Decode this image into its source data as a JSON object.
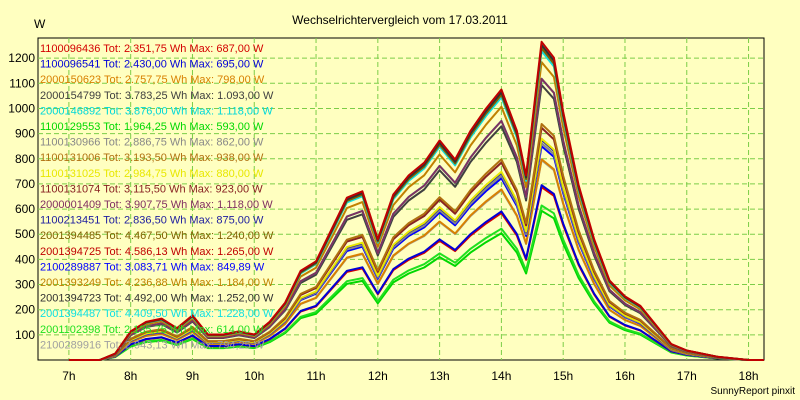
{
  "chart_data": {
    "type": "line",
    "title": "Wechselrichtervergleich vom 17.03.2011",
    "ylabel": "W",
    "xlabel": "",
    "footer": "SunnyReport pinxit",
    "xlim": [
      6.5,
      18.25
    ],
    "ylim": [
      0,
      1280
    ],
    "x_ticks": [
      7,
      8,
      9,
      10,
      11,
      12,
      13,
      14,
      15,
      16,
      17,
      18
    ],
    "x_tick_labels": [
      "7h",
      "8h",
      "9h",
      "10h",
      "11h",
      "12h",
      "13h",
      "14h",
      "15h",
      "16h",
      "17h",
      "18h"
    ],
    "y_ticks": [
      100,
      200,
      300,
      400,
      500,
      600,
      700,
      800,
      900,
      1000,
      1100,
      1200
    ],
    "grid": true,
    "legend_position": "left-inside",
    "x": [
      7.0,
      7.5,
      7.75,
      8.0,
      8.25,
      8.5,
      8.75,
      9.0,
      9.25,
      9.5,
      9.75,
      10.0,
      10.25,
      10.5,
      10.75,
      11.0,
      11.25,
      11.5,
      11.75,
      12.0,
      12.25,
      12.5,
      12.75,
      13.0,
      13.25,
      13.5,
      13.75,
      14.0,
      14.25,
      14.4,
      14.65,
      14.85,
      15.0,
      15.25,
      15.5,
      15.75,
      16.0,
      16.25,
      16.5,
      16.75,
      17.0,
      17.5,
      18.0,
      18.25
    ],
    "shape": [
      0,
      0,
      0.02,
      0.09,
      0.12,
      0.13,
      0.1,
      0.14,
      0.08,
      0.08,
      0.09,
      0.08,
      0.12,
      0.18,
      0.28,
      0.31,
      0.41,
      0.51,
      0.53,
      0.38,
      0.52,
      0.58,
      0.62,
      0.69,
      0.63,
      0.72,
      0.79,
      0.85,
      0.72,
      0.58,
      1.0,
      0.95,
      0.78,
      0.55,
      0.38,
      0.25,
      0.2,
      0.17,
      0.11,
      0.05,
      0.03,
      0.01,
      0,
      0
    ],
    "series": [
      {
        "name": "1100096436",
        "label": "1100096436 Tot: 2.351,75 Wh Max: 687,00 W",
        "max": 687.0,
        "color": "#d40000"
      },
      {
        "name": "1100096541",
        "label": "1100096541 Tot: 2.430,00 Wh Max: 695,00 W",
        "max": 695.0,
        "color": "#0000d8"
      },
      {
        "name": "2000150623",
        "label": "2000150623 Tot: 2.757,75 Wh Max: 798,00 W",
        "max": 798.0,
        "color": "#d88000"
      },
      {
        "name": "2000154799",
        "label": "2000154799 Tot: 3.783,25 Wh Max: 1.093,00 W",
        "max": 1093.0,
        "color": "#404040"
      },
      {
        "name": "2000146892",
        "label": "2000146892 Tot: 3.876,00 Wh Max: 1.118,00 W",
        "max": 1118.0,
        "color": "#00d8d8"
      },
      {
        "name": "1100129553",
        "label": "1100129553 Tot: 1.964,25 Wh Max: 593,00 W",
        "max": 593.0,
        "color": "#00d800"
      },
      {
        "name": "1100130966",
        "label": "1100130966 Tot: 2.886,75 Wh Max: 862,00 W",
        "max": 862.0,
        "color": "#888888"
      },
      {
        "name": "1100131006",
        "label": "1100131006 Tot: 3.193,50 Wh Max: 938,00 W",
        "max": 938.0,
        "color": "#b07010"
      },
      {
        "name": "1100131025",
        "label": "1100131025 Tot: 2.984,75 Wh Max: 880,00 W",
        "max": 880.0,
        "color": "#e8e800"
      },
      {
        "name": "1100131074",
        "label": "1100131074 Tot: 3.115,50 Wh Max: 923,00 W",
        "max": 923.0,
        "color": "#882222"
      },
      {
        "name": "2000001409",
        "label": "2000001409 Tot: 3.907,75 Wh Max: 1.118,00 W",
        "max": 1118.0,
        "color": "#803060"
      },
      {
        "name": "1100213451",
        "label": "1100213451 Tot: 2.836,50 Wh Max: 875,00 W",
        "max": 875.0,
        "color": "#2020a0"
      },
      {
        "name": "2001394485",
        "label": "2001394485 Tot: 4.467,50 Wh Max: 1.240,00 W",
        "max": 1240.0,
        "color": "#806000"
      },
      {
        "name": "2001394725",
        "label": "2001394725 Tot: 4.586,13 Wh Max: 1.265,00 W",
        "max": 1265.0,
        "color": "#c00000"
      },
      {
        "name": "2100289887",
        "label": "2100289887 Tot: 3.083,71 Wh Max: 849,89 W",
        "max": 849.89,
        "color": "#0000ff"
      },
      {
        "name": "2001393249",
        "label": "2001393249 Tot: 4.236,88 Wh Max: 1.184,00 W",
        "max": 1184.0,
        "color": "#c08000"
      },
      {
        "name": "2001394723",
        "label": "2001394723 Tot: 4.492,00 Wh Max: 1.252,00 W",
        "max": 1252.0,
        "color": "#303030"
      },
      {
        "name": "2001394487",
        "label": "2001394487 Tot: 4.409,50 Wh Max: 1.228,00 W",
        "max": 1228.0,
        "color": "#10e0e0"
      },
      {
        "name": "2001102398",
        "label": "2001102398 Tot: 2.135,75 Wh Max: 614,00 W",
        "max": 614.0,
        "color": "#20e020"
      },
      {
        "name": "2100289916",
        "label": "2100289916 Tot: 2.943,13 Wh Max: 794,25 W",
        "max": 794.25,
        "color": "#a0a0a0"
      }
    ]
  }
}
